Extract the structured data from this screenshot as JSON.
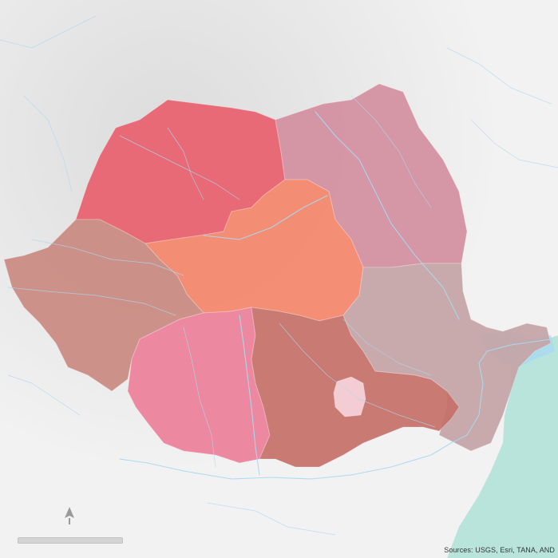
{
  "map": {
    "attribution": "Sources: USGS, Esri, TANA, AND",
    "regions": [
      {
        "id": "north-west",
        "color": "#e8606e"
      },
      {
        "id": "north-east",
        "color": "#d38e9f"
      },
      {
        "id": "centre",
        "color": "#f4866a"
      },
      {
        "id": "west",
        "color": "#c98a80"
      },
      {
        "id": "south-east",
        "color": "#c4a4a6"
      },
      {
        "id": "south-west-oltenia",
        "color": "#ec8099"
      },
      {
        "id": "south-muntenia",
        "color": "#c47068"
      },
      {
        "id": "bucharest-ilfov",
        "color": "#f7d4dc"
      }
    ],
    "sea_color": "#b8e4dc",
    "river_color": "#a9d9f2"
  }
}
